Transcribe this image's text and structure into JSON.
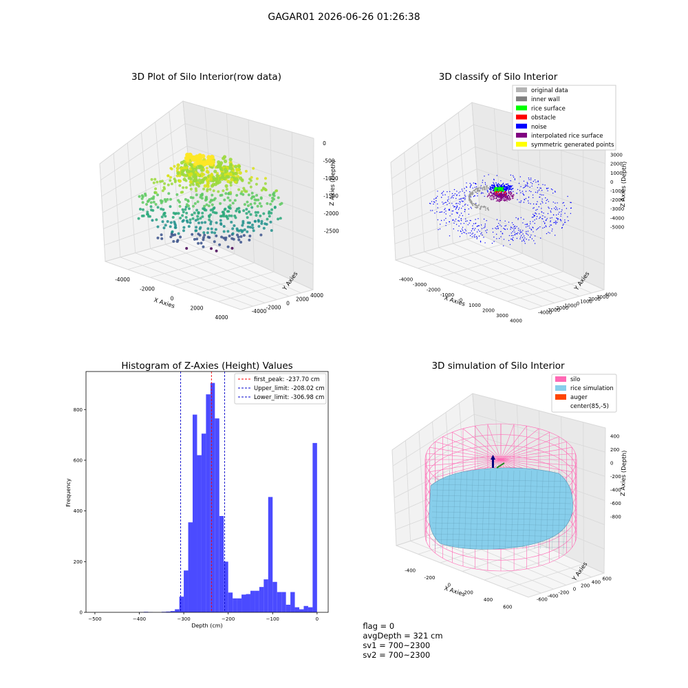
{
  "figure": {
    "suptitle": "GAGAR01 2026-06-26 01:26:38",
    "status": {
      "flag": "flag = 0",
      "avg_depth": "avgDepth = 321 cm",
      "sv1": "sv1 = 700~2300",
      "sv2": "sv2 = 700~2300"
    }
  },
  "chart_data": [
    {
      "type": "scatter",
      "subtype": "3d",
      "title": "3D Plot of Silo Interior(row data)",
      "xlabel": "X Axies",
      "ylabel": "Y Axies",
      "zlabel": "Z Axies (Depth)",
      "x_ticks": [
        "-4000",
        "-2000",
        "0",
        "2000",
        "4000"
      ],
      "y_ticks": [
        "-4000",
        "-2000",
        "0",
        "2000",
        "4000"
      ],
      "z_ticks": [
        "0",
        "-500",
        "-1000",
        "-1500",
        "-2000",
        "-2500"
      ],
      "xlim": [
        -4500,
        4500
      ],
      "ylim": [
        -4500,
        4500
      ],
      "zlim": [
        -2700,
        100
      ],
      "colormap": "viridis",
      "grid": true
    },
    {
      "type": "scatter",
      "subtype": "3d",
      "title": "3D classify of Silo Interior",
      "xlabel": "X Axies",
      "ylabel": "Y Axies",
      "zlabel": "Z Axies (Depth)",
      "x_ticks": [
        "-4000",
        "-3000",
        "-2000",
        "-1000",
        "0",
        "1000",
        "2000",
        "3000",
        "4000"
      ],
      "y_ticks": [
        "-4000",
        "-3000",
        "-2000",
        "-1000",
        "0",
        "1000",
        "2000",
        "3000",
        "4000"
      ],
      "z_ticks": [
        "3000",
        "2000",
        "1000",
        "0",
        "-1000",
        "-2000",
        "-3000",
        "-4000",
        "-5000"
      ],
      "xlim": [
        -4200,
        4200
      ],
      "ylim": [
        -4200,
        4200
      ],
      "zlim": [
        -5500,
        3200
      ],
      "legend_position": "upper-right",
      "legend": [
        {
          "label": "original data",
          "color": "#b4b4b4"
        },
        {
          "label": "inner wall",
          "color": "#808080"
        },
        {
          "label": "rice surface",
          "color": "#00ff00"
        },
        {
          "label": "obstacle",
          "color": "#ff0000"
        },
        {
          "label": "noise",
          "color": "#0000ff"
        },
        {
          "label": "interpolated rice surface",
          "color": "#800080"
        },
        {
          "label": "symmetric generated points",
          "color": "#ffff00"
        }
      ],
      "grid": true
    },
    {
      "type": "bar",
      "subtype": "histogram",
      "title": "Histogram of Z-Axies (Height) Values",
      "xlabel": "Depth (cm)",
      "ylabel": "Frequency",
      "xlim": [
        -520,
        25
      ],
      "ylim": [
        0,
        950
      ],
      "x_ticks": [
        -500,
        -400,
        -300,
        -200,
        -100,
        0
      ],
      "y_ticks": [
        0,
        200,
        400,
        600,
        800
      ],
      "bar_color": "#4b4bff",
      "bin_width": 10,
      "bins": [
        {
          "x": -400,
          "v": 1
        },
        {
          "x": -390,
          "v": 2
        },
        {
          "x": -380,
          "v": 1
        },
        {
          "x": -350,
          "v": 2
        },
        {
          "x": -340,
          "v": 3
        },
        {
          "x": -330,
          "v": 5
        },
        {
          "x": -320,
          "v": 12
        },
        {
          "x": -310,
          "v": 62
        },
        {
          "x": -300,
          "v": 165
        },
        {
          "x": -290,
          "v": 355
        },
        {
          "x": -280,
          "v": 780
        },
        {
          "x": -270,
          "v": 620
        },
        {
          "x": -260,
          "v": 705
        },
        {
          "x": -250,
          "v": 860
        },
        {
          "x": -240,
          "v": 905
        },
        {
          "x": -230,
          "v": 765
        },
        {
          "x": -220,
          "v": 380
        },
        {
          "x": -210,
          "v": 200
        },
        {
          "x": -200,
          "v": 78
        },
        {
          "x": -190,
          "v": 55
        },
        {
          "x": -180,
          "v": 55
        },
        {
          "x": -170,
          "v": 70
        },
        {
          "x": -160,
          "v": 72
        },
        {
          "x": -150,
          "v": 85
        },
        {
          "x": -140,
          "v": 85
        },
        {
          "x": -130,
          "v": 100
        },
        {
          "x": -120,
          "v": 130
        },
        {
          "x": -110,
          "v": 455
        },
        {
          "x": -100,
          "v": 120
        },
        {
          "x": -90,
          "v": 80
        },
        {
          "x": -80,
          "v": 80
        },
        {
          "x": -70,
          "v": 30
        },
        {
          "x": -60,
          "v": 80
        },
        {
          "x": -50,
          "v": 20
        },
        {
          "x": -40,
          "v": 12
        },
        {
          "x": -30,
          "v": 25
        },
        {
          "x": -20,
          "v": 20
        },
        {
          "x": -10,
          "v": 668
        }
      ],
      "vlines": [
        {
          "label": "first_peak: -237.70 cm",
          "x": -237.7,
          "color": "#ff0000"
        },
        {
          "label": "Upper_limit: -208.02 cm",
          "x": -208.02,
          "color": "#0000cc"
        },
        {
          "label": "Lower_limit: -306.98 cm",
          "x": -306.98,
          "color": "#0000cc"
        }
      ],
      "legend_position": "upper-right",
      "grid": false
    },
    {
      "type": "area",
      "subtype": "3d-surface",
      "title": "3D simulation of Silo Interior",
      "xlabel": "X Axies",
      "ylabel": "Y Axies",
      "zlabel": "Z Axies (Depth)",
      "x_ticks": [
        "-400",
        "-200",
        "0",
        "200",
        "400",
        "600"
      ],
      "y_ticks": [
        "-600",
        "-400",
        "-200",
        "0",
        "200",
        "400",
        "600"
      ],
      "z_ticks": [
        "400",
        "200",
        "0",
        "-200",
        "-400",
        "-600",
        "-800"
      ],
      "xlim": [
        -600,
        750
      ],
      "ylim": [
        -700,
        700
      ],
      "zlim": [
        -950,
        450
      ],
      "legend_position": "upper-right",
      "legend": [
        {
          "label": "silo",
          "color": "#ff69b4"
        },
        {
          "label": "rice simulation",
          "color": "#87ceeb"
        },
        {
          "label": "auger",
          "color": "#ff4500"
        },
        {
          "label": "center(85,-5)",
          "color": "#ffffff"
        }
      ],
      "grid": true
    }
  ]
}
